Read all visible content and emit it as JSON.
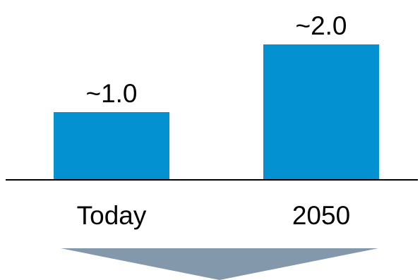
{
  "chart_data": {
    "type": "bar",
    "categories": [
      "Today",
      "2050"
    ],
    "values": [
      1.0,
      2.0
    ],
    "data_labels": [
      "~1.0",
      "~2.0"
    ],
    "title": "",
    "xlabel": "",
    "ylabel": "",
    "ylim": [
      0,
      2.0
    ],
    "grid": false,
    "legend": "none",
    "colors": {
      "bar": "#0391d2",
      "axis": "#000000",
      "arrow": "#8498ab"
    }
  },
  "decorations": {
    "arrow_icon": "down-arrow-icon"
  }
}
